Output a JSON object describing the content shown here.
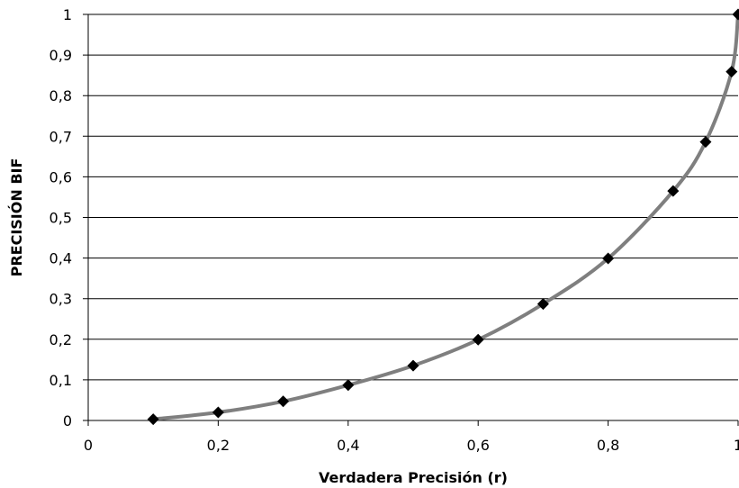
{
  "chart_data": {
    "type": "scatter",
    "xlabel": "Verdadera Precisión (r)",
    "ylabel": "PRECISIÓN BIF",
    "xlim": [
      0,
      1
    ],
    "ylim": [
      0,
      1
    ],
    "x_ticks": [
      "0",
      "0,2",
      "0,4",
      "0,6",
      "0,8",
      "1"
    ],
    "y_ticks": [
      "0",
      "0,1",
      "0,2",
      "0,3",
      "0,4",
      "0,5",
      "0,6",
      "0,7",
      "0,8",
      "0,9",
      "1"
    ],
    "grid": "horizontal",
    "legend": "none",
    "colors": {
      "curve": "#7f7f7f",
      "marker": "#000000",
      "grid": "#000000"
    },
    "series": [
      {
        "marker": "diamond",
        "line": "smooth",
        "points": [
          {
            "x": 0.1,
            "y": 0.003
          },
          {
            "x": 0.2,
            "y": 0.02
          },
          {
            "x": 0.3,
            "y": 0.047
          },
          {
            "x": 0.4,
            "y": 0.087
          },
          {
            "x": 0.5,
            "y": 0.135
          },
          {
            "x": 0.6,
            "y": 0.199
          },
          {
            "x": 0.7,
            "y": 0.287
          },
          {
            "x": 0.8,
            "y": 0.399
          },
          {
            "x": 0.9,
            "y": 0.565
          },
          {
            "x": 0.95,
            "y": 0.686
          },
          {
            "x": 0.99,
            "y": 0.859
          },
          {
            "x": 1.0,
            "y": 1.0
          }
        ]
      }
    ]
  }
}
